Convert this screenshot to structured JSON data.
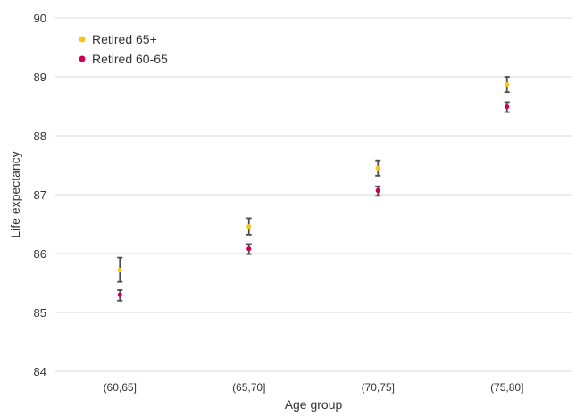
{
  "chart_data": {
    "type": "scatter",
    "title": "",
    "xlabel": "Age group",
    "ylabel": "Life expectancy",
    "categories": [
      "(60,65]",
      "(65,70]",
      "(70,75]",
      "(75,80]"
    ],
    "ylim": [
      84,
      90
    ],
    "yticks": [
      84,
      85,
      86,
      87,
      88,
      89,
      90
    ],
    "grid": "horizontal",
    "legend_position": "top-left",
    "series": [
      {
        "name": "Retired 65+",
        "color": "#f5c518",
        "values": [
          85.72,
          86.46,
          87.45,
          88.87
        ],
        "err_low": [
          85.52,
          86.32,
          87.32,
          88.74
        ],
        "err_high": [
          85.93,
          86.6,
          87.58,
          89.0
        ]
      },
      {
        "name": "Retired 60-65",
        "color": "#c8005a",
        "values": [
          85.3,
          86.08,
          87.07,
          88.49
        ],
        "err_low": [
          85.2,
          85.99,
          86.98,
          88.4
        ],
        "err_high": [
          85.38,
          86.16,
          87.14,
          88.57
        ]
      }
    ]
  }
}
